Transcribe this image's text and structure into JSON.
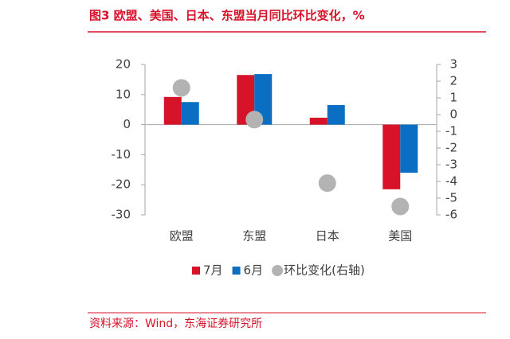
{
  "chart_data": {
    "type": "bar",
    "title": "图3 欧盟、美国、日本、东盟当月同比环比变化，%",
    "source": "资料来源：Wind，东海证券研究所",
    "categories": [
      "欧盟",
      "东盟",
      "日本",
      "美国"
    ],
    "series": [
      {
        "name": "7月",
        "color": "#d7132a",
        "values": [
          9.2,
          16.5,
          2.3,
          -21.5
        ]
      },
      {
        "name": "6月",
        "color": "#0a6fc2",
        "values": [
          7.5,
          16.8,
          6.5,
          -16
        ]
      },
      {
        "name": "环比变化(右轴)",
        "color": "#b3b3b3",
        "type": "scatter",
        "axis": "y2",
        "values": [
          1.6,
          -0.3,
          -4.1,
          -5.5
        ]
      }
    ],
    "ylim": [
      -30,
      20
    ],
    "yticks": [
      -30,
      -20,
      -10,
      0,
      10,
      20
    ],
    "y2lim": [
      -6,
      3
    ],
    "y2ticks": [
      -6,
      -5,
      -4,
      -3,
      -2,
      -1,
      0,
      1,
      2,
      3
    ],
    "grid": false
  }
}
